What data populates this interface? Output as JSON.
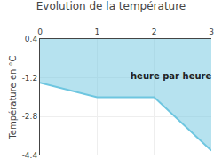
{
  "chart_data": {
    "type": "area",
    "title": "Evolution de la température",
    "ylabel": "Température en °C",
    "annotation": "heure par heure",
    "x": [
      0,
      1,
      2,
      3
    ],
    "values": [
      -1.4,
      -2.0,
      -2.0,
      -4.2
    ],
    "color": "#6ec6e0",
    "xlim": [
      0,
      3
    ],
    "ylim": [
      -4.4,
      0.4
    ],
    "xticks": [
      0,
      1,
      2,
      3
    ],
    "yticks": [
      0.4,
      -1.2,
      -2.8,
      -4.4
    ],
    "grid": true
  }
}
